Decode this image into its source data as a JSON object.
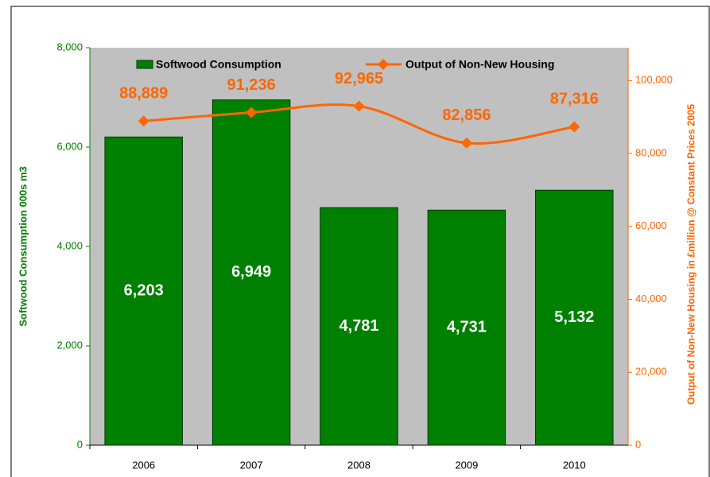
{
  "chart_data": {
    "type": "bar-line",
    "categories": [
      "2006",
      "2007",
      "2008",
      "2009",
      "2010"
    ],
    "series": [
      {
        "name": "Softwood Consumption",
        "type": "bar",
        "color": "#008000",
        "values": [
          6203,
          6949,
          4781,
          4731,
          5132
        ],
        "value_labels": [
          "6,203",
          "6,949",
          "4,781",
          "4,731",
          "5,132"
        ]
      },
      {
        "name": "Output of Non-New Housing",
        "type": "line",
        "axis": "y2",
        "color": "#ff6600",
        "values": [
          88889,
          91236,
          92965,
          82856,
          87316
        ],
        "value_labels": [
          "88,889",
          "91,236",
          "92,965",
          "82,856",
          "87,316"
        ]
      }
    ],
    "ylabel": "Softwood Consumption 000s m3",
    "y2label": "Output of Non-New Housing in £million @ Constant Prices 2005",
    "ylim": [
      0,
      8000
    ],
    "yticks": [
      0,
      {
        "value": 2000,
        "label": "2,000"
      },
      {
        "value": 4000,
        "label": "4,000"
      },
      {
        "value": 6000,
        "label": "6,000"
      },
      {
        "value": 8000,
        "label": "8,000"
      }
    ],
    "y2lim": [
      0,
      109000
    ],
    "y2ticks": [
      0,
      {
        "value": 20000,
        "label": "20,000"
      },
      {
        "value": 40000,
        "label": "40,000"
      },
      {
        "value": 60000,
        "label": "60,000"
      },
      {
        "value": 80000,
        "label": "80,000"
      },
      {
        "value": 100000,
        "label": "100,000"
      }
    ],
    "plot_background": "#c0c0c0"
  }
}
